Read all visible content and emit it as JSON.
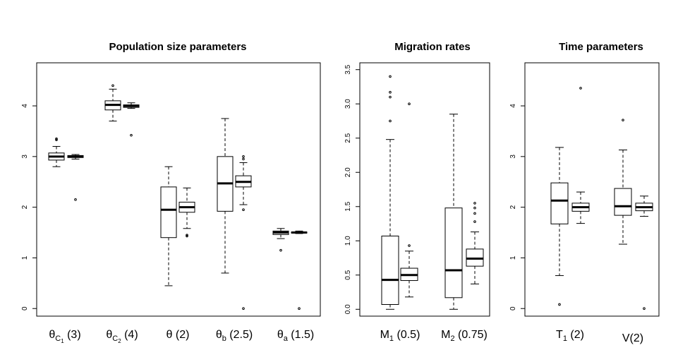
{
  "chart_data": [
    {
      "type": "boxplot",
      "title": "Population size parameters",
      "ylim": [
        -0.15,
        4.85
      ],
      "yticks": [
        "0",
        "1",
        "2",
        "3",
        "4"
      ],
      "categories": [
        {
          "label": [
            {
              "t": "θ"
            },
            {
              "t": "C",
              "sub": true
            },
            {
              "t": "1",
              "subsub": true
            },
            {
              "t": " (3)"
            }
          ],
          "boxes": [
            {
              "lw": 2.8,
              "q1": 2.93,
              "median": 3.0,
              "q3": 3.07,
              "hi": 3.2,
              "outliers": [
                3.33,
                3.35
              ]
            },
            {
              "lw": 2.95,
              "q1": 2.98,
              "median": 3.0,
              "q3": 3.02,
              "hi": 3.04,
              "outliers": [
                2.15
              ]
            }
          ]
        },
        {
          "label": [
            {
              "t": "θ"
            },
            {
              "t": "C",
              "sub": true
            },
            {
              "t": "2",
              "subsub": true
            },
            {
              "t": " (4)"
            }
          ],
          "boxes": [
            {
              "lw": 3.7,
              "q1": 3.92,
              "median": 4.02,
              "q3": 4.1,
              "hi": 4.33,
              "outliers": [
                4.4
              ]
            },
            {
              "lw": 3.95,
              "q1": 3.97,
              "median": 4.0,
              "q3": 4.02,
              "hi": 4.06,
              "outliers": [
                3.42
              ]
            }
          ]
        },
        {
          "label": [
            {
              "t": "θ (2)"
            }
          ],
          "boxes": [
            {
              "lw": 0.45,
              "q1": 1.4,
              "median": 1.95,
              "q3": 2.4,
              "hi": 2.8,
              "outliers": []
            },
            {
              "lw": 1.58,
              "q1": 1.9,
              "median": 2.0,
              "q3": 2.1,
              "hi": 2.38,
              "outliers": [
                1.45,
                1.43
              ]
            }
          ]
        },
        {
          "label": [
            {
              "t": "θ"
            },
            {
              "t": "b",
              "sub": true
            },
            {
              "t": " (2.5)"
            }
          ],
          "boxes": [
            {
              "lw": 0.7,
              "q1": 1.92,
              "median": 2.47,
              "q3": 3.0,
              "hi": 3.75,
              "outliers": []
            },
            {
              "lw": 2.05,
              "q1": 2.4,
              "median": 2.5,
              "q3": 2.62,
              "hi": 2.88,
              "outliers": [
                2.95,
                3.0,
                1.95,
                0.0
              ]
            }
          ]
        },
        {
          "label": [
            {
              "t": "θ"
            },
            {
              "t": "a",
              "sub": true
            },
            {
              "t": " (1.5)"
            }
          ],
          "boxes": [
            {
              "lw": 1.38,
              "q1": 1.46,
              "median": 1.5,
              "q3": 1.53,
              "hi": 1.58,
              "outliers": [
                1.15
              ]
            },
            {
              "lw": 1.48,
              "q1": 1.49,
              "median": 1.5,
              "q3": 1.51,
              "hi": 1.53,
              "outliers": [
                0.0
              ]
            }
          ]
        }
      ]
    },
    {
      "type": "boxplot",
      "title": "Migration rates",
      "ylim": [
        -0.1,
        3.6
      ],
      "yticks": [
        "0.0",
        "0.5",
        "1.0",
        "1.5",
        "2.0",
        "2.5",
        "3.0",
        "3.5"
      ],
      "categories": [
        {
          "label": [
            {
              "t": "M"
            },
            {
              "t": "1",
              "sub": true
            },
            {
              "t": " (0.5)"
            }
          ],
          "boxes": [
            {
              "lw": 0.0,
              "q1": 0.07,
              "median": 0.43,
              "q3": 1.07,
              "hi": 2.48,
              "outliers": [
                2.75,
                3.1,
                3.17,
                3.4
              ]
            },
            {
              "lw": 0.18,
              "q1": 0.42,
              "median": 0.5,
              "q3": 0.6,
              "hi": 0.85,
              "outliers": [
                0.93,
                3.0
              ]
            }
          ]
        },
        {
          "label": [
            {
              "t": "M"
            },
            {
              "t": "2",
              "sub": true
            },
            {
              "t": " (0.75)"
            }
          ],
          "boxes": [
            {
              "lw": 0.0,
              "q1": 0.17,
              "median": 0.57,
              "q3": 1.48,
              "hi": 2.85,
              "outliers": []
            },
            {
              "lw": 0.37,
              "q1": 0.63,
              "median": 0.74,
              "q3": 0.88,
              "hi": 1.13,
              "outliers": [
                1.28,
                1.4,
                1.48,
                1.55
              ]
            }
          ]
        }
      ]
    },
    {
      "type": "boxplot",
      "title": "Time parameters",
      "ylim": [
        -0.15,
        4.85
      ],
      "yticks": [
        "0",
        "1",
        "2",
        "3",
        "4"
      ],
      "categories": [
        {
          "label": [
            {
              "t": "T"
            },
            {
              "t": "1",
              "sub": true
            },
            {
              "t": " (2)"
            }
          ],
          "boxes": [
            {
              "lw": 0.65,
              "q1": 1.67,
              "median": 2.13,
              "q3": 2.48,
              "hi": 3.18,
              "outliers": [
                0.08
              ]
            },
            {
              "lw": 1.68,
              "q1": 1.92,
              "median": 2.0,
              "q3": 2.08,
              "hi": 2.3,
              "outliers": [
                4.35
              ]
            }
          ]
        },
        {
          "label": [
            {
              "t": "V(2)"
            }
          ],
          "boxes": [
            {
              "lw": 1.27,
              "q1": 1.84,
              "median": 2.02,
              "q3": 2.37,
              "hi": 3.13,
              "outliers": [
                3.72
              ]
            },
            {
              "lw": 1.82,
              "q1": 1.93,
              "median": 2.0,
              "q3": 2.08,
              "hi": 2.22,
              "outliers": [
                0.0
              ]
            }
          ]
        }
      ]
    }
  ]
}
